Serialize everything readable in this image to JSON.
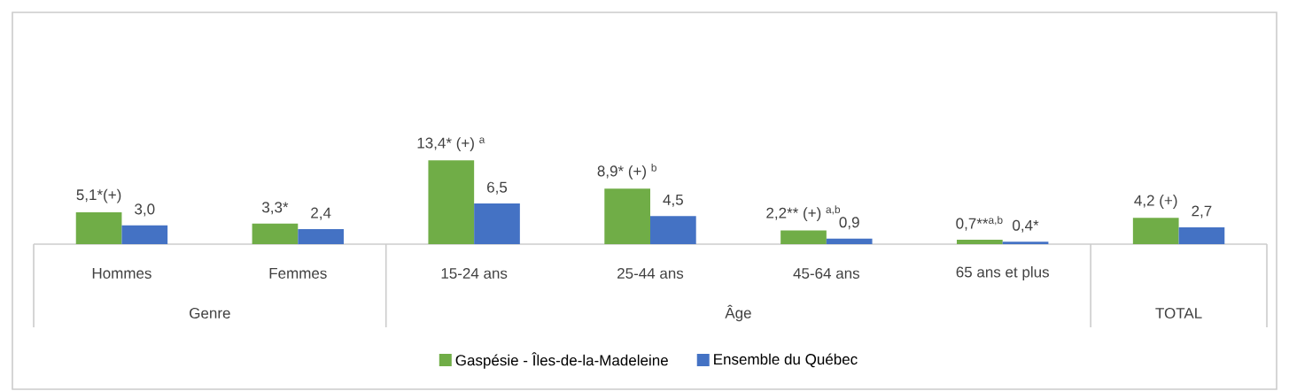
{
  "chart_data": {
    "type": "bar",
    "categories": [
      "Hommes",
      "Femmes",
      "15-24 ans",
      "25-44 ans",
      "45-64 ans",
      "65 ans et plus",
      null
    ],
    "series": [
      {
        "name": "Gaspésie - Îles-de-la-Madeleine",
        "color": "#70ad47",
        "values": [
          5.1,
          3.3,
          13.4,
          8.9,
          2.2,
          0.7,
          4.2
        ],
        "value_labels": [
          "5,1*(+)",
          "3,3*",
          "13,4* (+) $^{a}$",
          "8,9* (+) $^{b}$",
          "2,2** (+) $^{a,b}$",
          "0,7**$^{a,b}$",
          "4,2 (+)"
        ]
      },
      {
        "name": "Ensemble du Québec",
        "color": "#4472c4",
        "values": [
          3.0,
          2.4,
          6.5,
          4.5,
          0.9,
          0.4,
          2.7
        ],
        "value_labels": [
          "3,0",
          "2,4",
          "6,5",
          "4,5",
          "0,9",
          "0,4*",
          "2,7"
        ]
      }
    ],
    "annotations": [
      "Genre",
      "Âge",
      "TOTAL"
    ],
    "legend": "bottom"
  }
}
